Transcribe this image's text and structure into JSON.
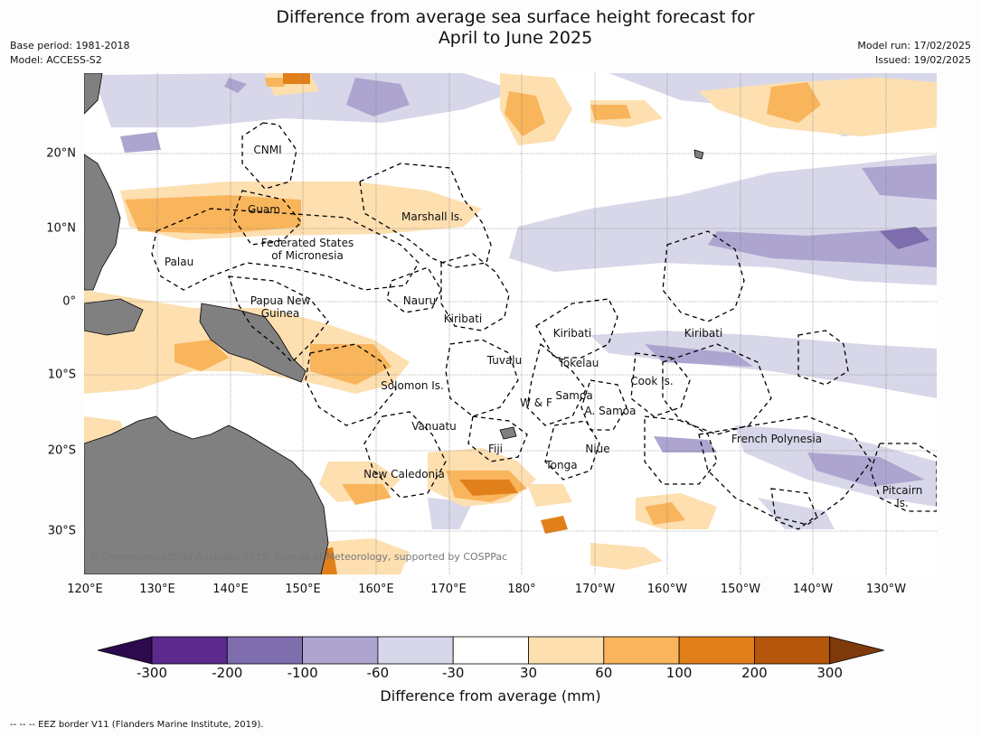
{
  "title_line1": "Difference from average sea surface height forecast for",
  "title_line2": "April to June 2025",
  "base_period": "Base period: 1981-2018",
  "model": "Model: ACCESS-S2",
  "model_run": "Model run: 17/02/2025",
  "issued": "Issued: 19/02/2025",
  "lon_ticks": [
    "120°E",
    "130°E",
    "140°E",
    "150°E",
    "160°E",
    "170°E",
    "180°",
    "170°W",
    "160°W",
    "150°W",
    "140°W",
    "130°W"
  ],
  "lat_ticks": [
    "20°N",
    "10°N",
    "0°",
    "10°S",
    "20°S",
    "30°S"
  ],
  "colorbar": {
    "label": "Difference from average (mm)",
    "ticks": [
      "-300",
      "-200",
      "-100",
      "-60",
      "-30",
      "30",
      "60",
      "100",
      "200",
      "300"
    ],
    "colors": [
      "#2d0a4e",
      "#5b2a8c",
      "#7e6ead",
      "#ada5d0",
      "#d7d7e9",
      "#ffffff",
      "#fddfb0",
      "#f9b55c",
      "#e1801a",
      "#b4560b",
      "#7f3a0b"
    ]
  },
  "places": [
    {
      "name": "CNMI",
      "lines": [
        "CNMI"
      ]
    },
    {
      "name": "Guam",
      "lines": [
        "Guam"
      ]
    },
    {
      "name": "Marshall Is.",
      "lines": [
        "Marshall Is."
      ]
    },
    {
      "name": "FSM",
      "lines": [
        "Federated States",
        "of Micronesia"
      ]
    },
    {
      "name": "Palau",
      "lines": [
        "Palau"
      ]
    },
    {
      "name": "PNG",
      "lines": [
        "Papua New",
        "Guinea"
      ]
    },
    {
      "name": "Nauru",
      "lines": [
        "Nauru"
      ]
    },
    {
      "name": "Kiribati-W",
      "lines": [
        "Kiribati"
      ]
    },
    {
      "name": "Kiribati-C",
      "lines": [
        "Kiribati"
      ]
    },
    {
      "name": "Kiribati-E",
      "lines": [
        "Kiribati"
      ]
    },
    {
      "name": "Tuvalu",
      "lines": [
        "Tuvalu"
      ]
    },
    {
      "name": "Tokelau",
      "lines": [
        "Tokelau"
      ]
    },
    {
      "name": "Cook Is.",
      "lines": [
        "Cook Is."
      ]
    },
    {
      "name": "Solomon Is.",
      "lines": [
        "Solomon Is."
      ]
    },
    {
      "name": "Samoa",
      "lines": [
        "Samoa"
      ]
    },
    {
      "name": "W & F",
      "lines": [
        "W & F"
      ]
    },
    {
      "name": "A. Samoa",
      "lines": [
        "A. Samoa"
      ]
    },
    {
      "name": "Vanuatu",
      "lines": [
        "Vanuatu"
      ]
    },
    {
      "name": "French Polynesia",
      "lines": [
        "French Polynesia"
      ]
    },
    {
      "name": "Fiji",
      "lines": [
        "Fiji"
      ]
    },
    {
      "name": "Niue",
      "lines": [
        "Niue"
      ]
    },
    {
      "name": "Tonga",
      "lines": [
        "Tonga"
      ]
    },
    {
      "name": "New Caledonia",
      "lines": [
        "New Caledonia"
      ]
    },
    {
      "name": "Pitcairn Is.",
      "lines": [
        "Pitcairn",
        "Is."
      ]
    }
  ],
  "copyright": "© Commonwealth of Australia 2025, Bureau of Meteorology, supported by COSPPac",
  "footer": "-- -- -- EEZ border V11 (Flanders Marine Institute, 2019)."
}
